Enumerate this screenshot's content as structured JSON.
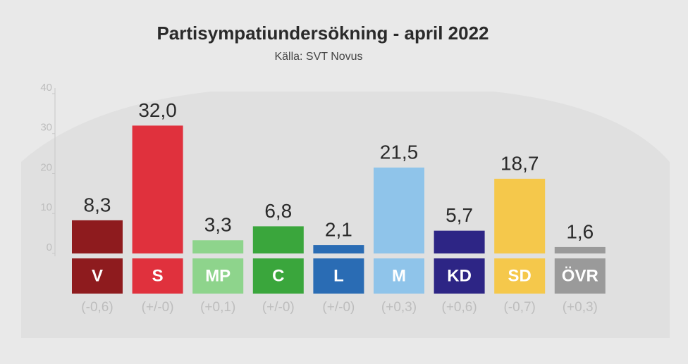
{
  "chart_data": {
    "type": "bar",
    "title": "Partisympatiundersökning - april 2022",
    "subtitle": "Källa: SVT Novus",
    "categories": [
      "V",
      "S",
      "MP",
      "C",
      "L",
      "M",
      "KD",
      "SD",
      "ÖVR"
    ],
    "values": [
      8.3,
      32.0,
      3.3,
      6.8,
      2.1,
      21.5,
      5.7,
      18.7,
      1.6
    ],
    "value_labels": [
      "8,3",
      "32,0",
      "3,3",
      "6,8",
      "2,1",
      "21,5",
      "5,7",
      "18,7",
      "1,6"
    ],
    "change_labels": [
      "(-0,6)",
      "(+/-0)",
      "(+0,1)",
      "(+/-0)",
      "(+/-0)",
      "(+0,3)",
      "(+0,6)",
      "(-0,7)",
      "(+0,3)"
    ],
    "colors": [
      "#8e1b1e",
      "#e0313d",
      "#8ed48c",
      "#3aa63c",
      "#2a6cb4",
      "#8fc4ea",
      "#2d2585",
      "#f5c84b",
      "#9a9a9a"
    ],
    "ylim": [
      0,
      40
    ],
    "yticks": [
      0,
      10,
      20,
      30,
      40
    ]
  }
}
